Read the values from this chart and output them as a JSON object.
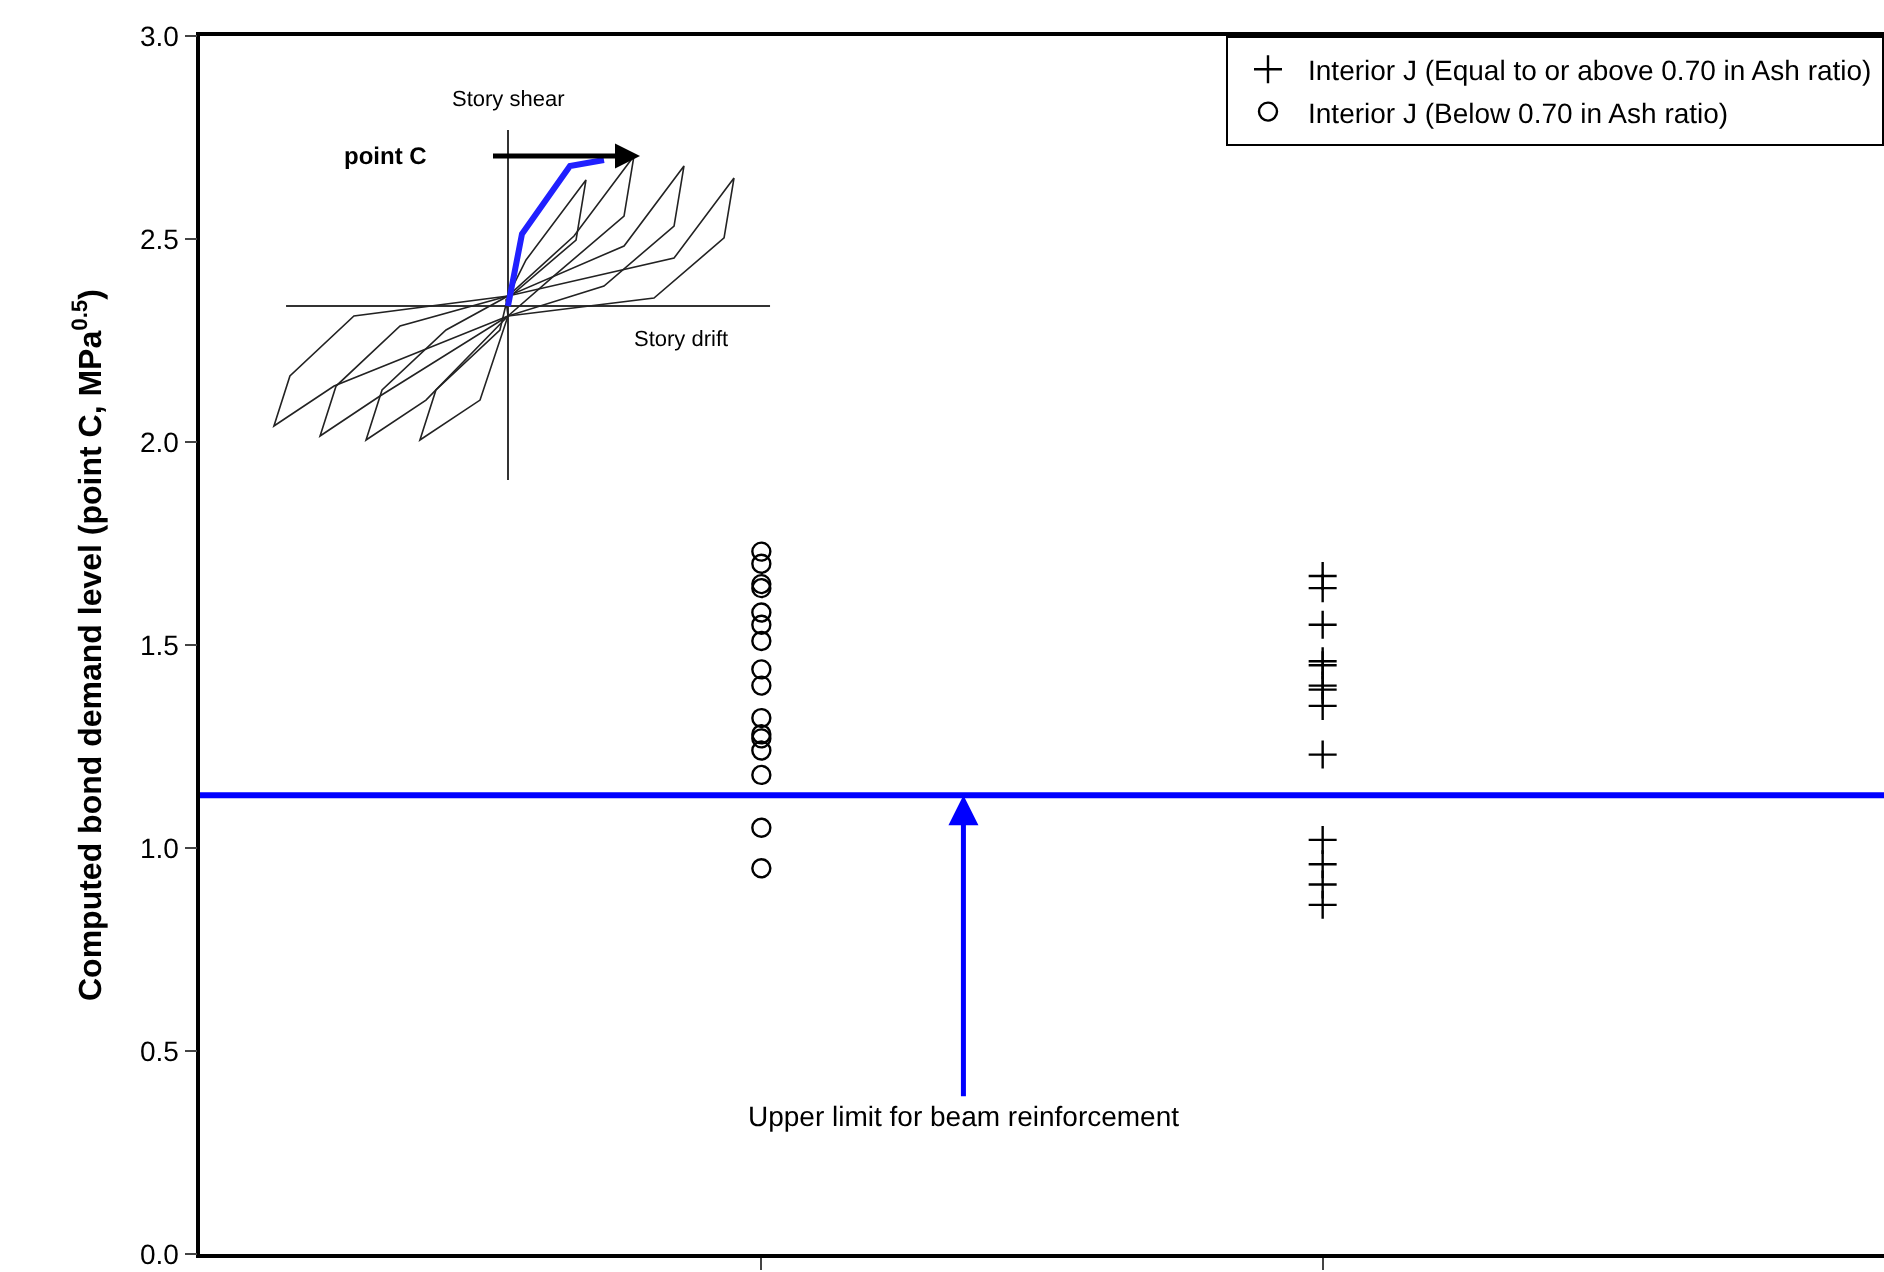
{
  "chart_data": {
    "type": "scatter",
    "ylabel": "Computed bond demand level (point C, MPa$^{0.5}$)",
    "categories": [
      null,
      null
    ],
    "ylim": [
      0,
      3
    ],
    "yticks": [
      {
        "value": 0,
        "label": "0.0"
      },
      {
        "value": 0.5,
        "label": "0.5"
      },
      {
        "value": 1,
        "label": "1.0"
      },
      {
        "value": 1.5,
        "label": "1.5"
      },
      {
        "value": 2,
        "label": "2.0"
      },
      {
        "value": 2.5,
        "label": "2.5"
      },
      {
        "value": 3,
        "label": "3.0"
      }
    ],
    "legend": "top right",
    "series": [
      {
        "name": "Interior J (Equal to or above 0.70 in Ash ratio)",
        "color": "#000000",
        "marker": "cross",
        "values": [
          null,
          1.67
        ]
      },
      {
        "name": "Interior J (Below 0.70 in Ash ratio)",
        "color": "#000000",
        "marker": "circle",
        "values": [
          1.73,
          null
        ]
      },
      {
        "color": "#000000",
        "marker": "cross",
        "values": [
          null,
          1.64
        ]
      },
      {
        "color": "#000000",
        "marker": "cross",
        "values": [
          null,
          1.55
        ]
      },
      {
        "color": "#000000",
        "marker": "cross",
        "values": [
          null,
          1.46
        ]
      },
      {
        "color": "#000000",
        "marker": "cross",
        "values": [
          null,
          1.45
        ]
      },
      {
        "color": "#000000",
        "marker": "cross",
        "values": [
          null,
          1.4
        ]
      },
      {
        "color": "#000000",
        "marker": "cross",
        "values": [
          null,
          1.39
        ]
      },
      {
        "color": "#000000",
        "marker": "cross",
        "values": [
          null,
          1.35
        ]
      },
      {
        "color": "#000000",
        "marker": "cross",
        "values": [
          null,
          1.23
        ]
      },
      {
        "color": "#000000",
        "marker": "cross",
        "values": [
          null,
          1.02
        ]
      },
      {
        "color": "#000000",
        "marker": "cross",
        "values": [
          null,
          0.96
        ]
      },
      {
        "color": "#000000",
        "marker": "cross",
        "values": [
          null,
          0.91
        ]
      },
      {
        "color": "#000000",
        "marker": "cross",
        "values": [
          null,
          0.86
        ]
      },
      {
        "color": "#000000",
        "marker": "circle",
        "values": [
          1.7,
          null
        ]
      },
      {
        "color": "#000000",
        "marker": "circle",
        "values": [
          1.65,
          null
        ]
      },
      {
        "color": "#000000",
        "marker": "circle",
        "values": [
          1.64,
          null
        ]
      },
      {
        "color": "#000000",
        "marker": "circle",
        "values": [
          1.58,
          null
        ]
      },
      {
        "color": "#000000",
        "marker": "circle",
        "values": [
          1.55,
          null
        ]
      },
      {
        "color": "#000000",
        "marker": "circle",
        "values": [
          1.51,
          null
        ]
      },
      {
        "color": "#000000",
        "marker": "circle",
        "values": [
          1.44,
          null
        ]
      },
      {
        "color": "#000000",
        "marker": "circle",
        "values": [
          1.4,
          null
        ]
      },
      {
        "color": "#000000",
        "marker": "circle",
        "values": [
          1.32,
          null
        ]
      },
      {
        "color": "#000000",
        "marker": "circle",
        "values": [
          1.28,
          null
        ]
      },
      {
        "color": "#000000",
        "marker": "circle",
        "values": [
          1.27,
          null
        ]
      },
      {
        "color": "#000000",
        "marker": "circle",
        "values": [
          1.24,
          null
        ]
      },
      {
        "color": "#000000",
        "marker": "circle",
        "values": [
          1.18,
          null
        ]
      },
      {
        "color": "#000000",
        "marker": "circle",
        "values": [
          1.05,
          null
        ]
      },
      {
        "color": "#000000",
        "marker": "circle",
        "values": [
          0.95,
          null
        ]
      }
    ],
    "ref_lines": [
      {
        "axis": "y",
        "value": 1.13,
        "color": "#0000ff",
        "line_style": "solid"
      }
    ],
    "annotations": [
      {
        "text": "Upper limit for beam reinforcement",
        "y": 1.13
      },
      "Story shear",
      "Story drift",
      "point C"
    ]
  }
}
